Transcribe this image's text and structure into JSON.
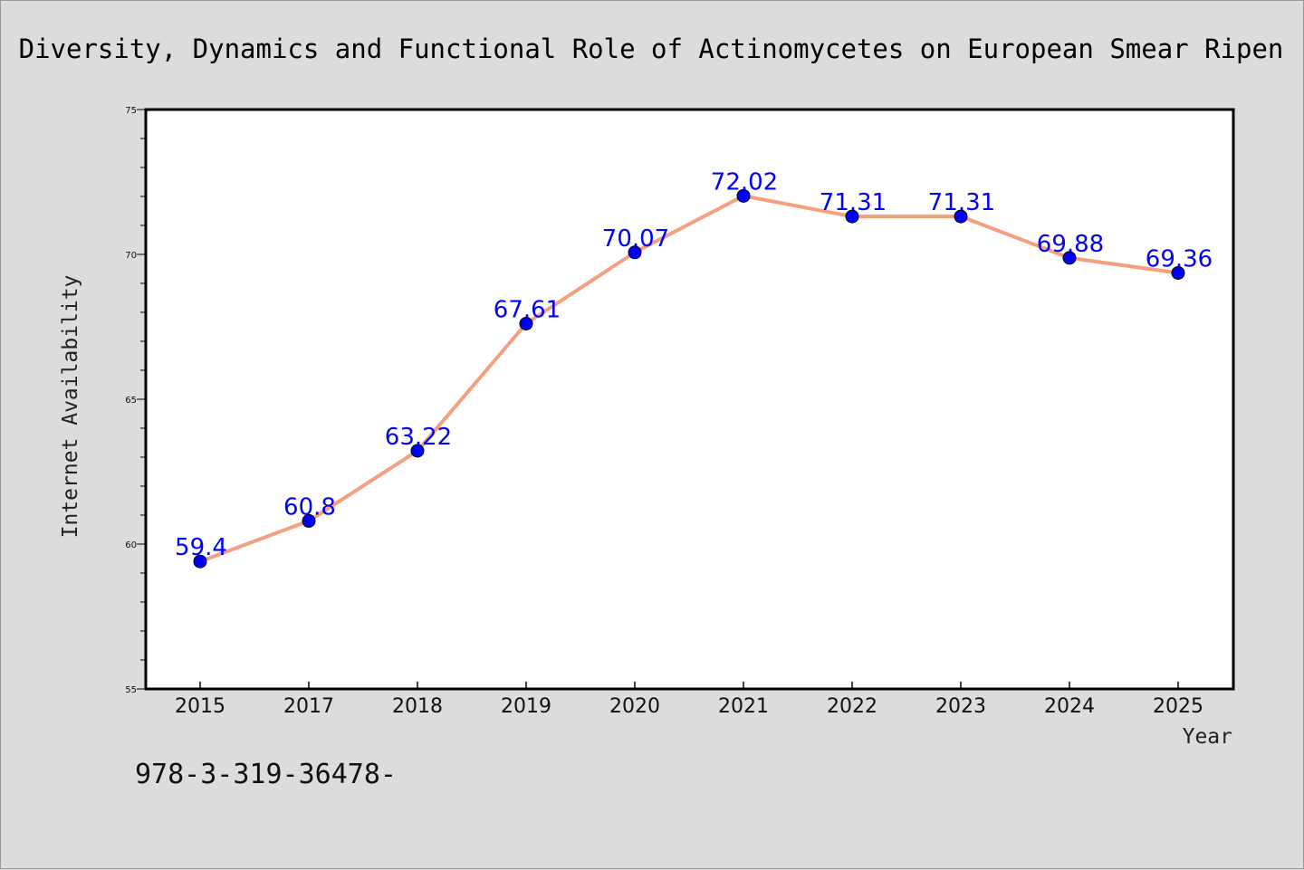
{
  "chart_data": {
    "type": "line",
    "title": "Diversity, Dynamics and Functional Role of Actinomycetes on European Smear Ripen",
    "xlabel": "Year",
    "ylabel": "Internet Availability",
    "categories": [
      "2015",
      "2017",
      "2018",
      "2019",
      "2020",
      "2021",
      "2022",
      "2023",
      "2024",
      "2025"
    ],
    "series": [
      {
        "values": [
          59.4,
          60.8,
          63.22,
          67.61,
          70.07,
          72.02,
          71.31,
          71.31,
          69.88,
          69.36
        ],
        "data_labels": [
          "59.4",
          "60.8",
          "63.22",
          "67.61",
          "70.07",
          "72.02",
          "71.31",
          "71.31",
          "69.88",
          "69.36"
        ]
      }
    ],
    "ylim": [
      55,
      75
    ],
    "y_ticks": [
      "55",
      "60",
      "65",
      "70",
      "75"
    ],
    "grid": false,
    "line_color": "#f4a07e",
    "marker_color": "#0000ff",
    "label_color": "#0000ff"
  },
  "footer": {
    "text": "978-3-319-36478-"
  }
}
